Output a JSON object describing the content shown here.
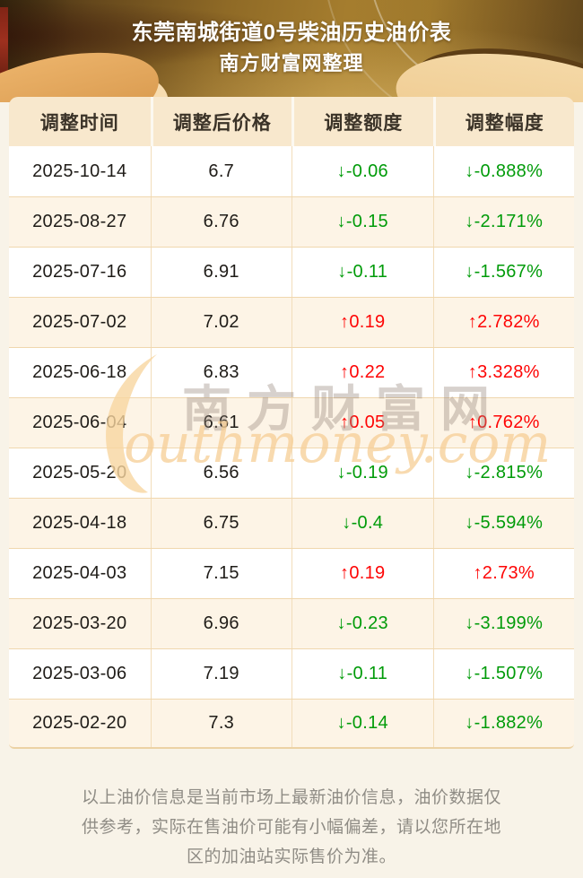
{
  "header": {
    "title": "东莞南城街道0号柴油历史油价表",
    "subtitle": "南方财富网整理"
  },
  "chart_data": {
    "type": "table",
    "title": "东莞南城街道0号柴油历史油价表",
    "subtitle": "南方财富网整理",
    "columns": [
      "调整时间",
      "调整后价格",
      "调整额度",
      "调整幅度"
    ],
    "rows": [
      {
        "date": "2025-10-14",
        "price": "6.7",
        "change": "↓-0.06",
        "pct": "↓-0.888%",
        "dir": "down"
      },
      {
        "date": "2025-08-27",
        "price": "6.76",
        "change": "↓-0.15",
        "pct": "↓-2.171%",
        "dir": "down"
      },
      {
        "date": "2025-07-16",
        "price": "6.91",
        "change": "↓-0.11",
        "pct": "↓-1.567%",
        "dir": "down"
      },
      {
        "date": "2025-07-02",
        "price": "7.02",
        "change": "↑0.19",
        "pct": "↑2.782%",
        "dir": "up"
      },
      {
        "date": "2025-06-18",
        "price": "6.83",
        "change": "↑0.22",
        "pct": "↑3.328%",
        "dir": "up"
      },
      {
        "date": "2025-06-04",
        "price": "6.61",
        "change": "↑0.05",
        "pct": "↑0.762%",
        "dir": "up"
      },
      {
        "date": "2025-05-20",
        "price": "6.56",
        "change": "↓-0.19",
        "pct": "↓-2.815%",
        "dir": "down"
      },
      {
        "date": "2025-04-18",
        "price": "6.75",
        "change": "↓-0.4",
        "pct": "↓-5.594%",
        "dir": "down"
      },
      {
        "date": "2025-04-03",
        "price": "7.15",
        "change": "↑0.19",
        "pct": "↑2.73%",
        "dir": "up"
      },
      {
        "date": "2025-03-20",
        "price": "6.96",
        "change": "↓-0.23",
        "pct": "↓-3.199%",
        "dir": "down"
      },
      {
        "date": "2025-03-06",
        "price": "7.19",
        "change": "↓-0.11",
        "pct": "↓-1.507%",
        "dir": "down"
      },
      {
        "date": "2025-02-20",
        "price": "7.3",
        "change": "↓-0.14",
        "pct": "↓-1.882%",
        "dir": "down"
      }
    ]
  },
  "watermark": {
    "cn": "南方财富网",
    "en": "outhmoney.com"
  },
  "footer": {
    "lines": [
      "以上油价信息是当前市场上最新油价信息，油价数据仅",
      "供参考，实际在售油价可能有小幅偏差，请以您所在地",
      "区的加油站实际售价为准。"
    ]
  },
  "colors": {
    "up_red": "#fe0505",
    "down_green": "#009b09",
    "header_cell_bg": "#f8e8cd",
    "row_alt_bg": "#fdf4e6",
    "grid_line": "#f0d7ae",
    "hero_gold": "#a8802f",
    "page_bg": "#f8f3e8"
  }
}
